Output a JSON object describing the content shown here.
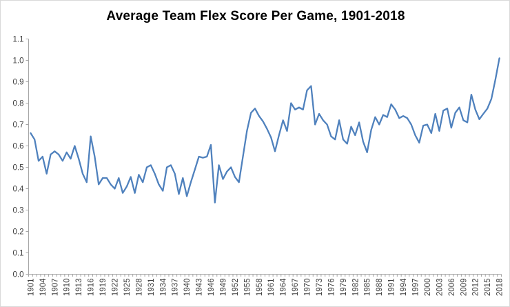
{
  "chart_data": {
    "type": "line",
    "title": "Average Team Flex Score Per Game, 1901-2018",
    "xlabel": "",
    "ylabel": "",
    "ylim": [
      0.0,
      1.1
    ],
    "y_tick_step": 0.1,
    "y_tick_labels": [
      "0.0",
      "0.1",
      "0.2",
      "0.3",
      "0.4",
      "0.5",
      "0.6",
      "0.7",
      "0.8",
      "0.9",
      "1.0",
      "1.1"
    ],
    "x_tick_label_step": 3,
    "x_tick_labels": [
      "1901",
      "1904",
      "1907",
      "1910",
      "1913",
      "1916",
      "1919",
      "1922",
      "1925",
      "1928",
      "1931",
      "1934",
      "1937",
      "1940",
      "1943",
      "1946",
      "1949",
      "1952",
      "1955",
      "1958",
      "1961",
      "1964",
      "1967",
      "1970",
      "1973",
      "1976",
      "1979",
      "1982",
      "1985",
      "1988",
      "1991",
      "1994",
      "1997",
      "2000",
      "2003",
      "2006",
      "2009",
      "2012",
      "2015",
      "2018"
    ],
    "grid": false,
    "legend": false,
    "line_color": "#4F81BD",
    "axis_color": "#A6A6A6",
    "tick_label_color": "#404040",
    "background_color": "#FFFFFF",
    "x": [
      1901,
      1902,
      1903,
      1904,
      1905,
      1906,
      1907,
      1908,
      1909,
      1910,
      1911,
      1912,
      1913,
      1914,
      1915,
      1916,
      1917,
      1918,
      1919,
      1920,
      1921,
      1922,
      1923,
      1924,
      1925,
      1926,
      1927,
      1928,
      1929,
      1930,
      1931,
      1932,
      1933,
      1934,
      1935,
      1936,
      1937,
      1938,
      1939,
      1940,
      1941,
      1942,
      1943,
      1944,
      1945,
      1946,
      1947,
      1948,
      1949,
      1950,
      1951,
      1952,
      1953,
      1954,
      1955,
      1956,
      1957,
      1958,
      1959,
      1960,
      1961,
      1962,
      1963,
      1964,
      1965,
      1966,
      1967,
      1968,
      1969,
      1970,
      1971,
      1972,
      1973,
      1974,
      1975,
      1976,
      1977,
      1978,
      1979,
      1980,
      1981,
      1982,
      1983,
      1984,
      1985,
      1986,
      1987,
      1988,
      1989,
      1990,
      1991,
      1992,
      1993,
      1994,
      1995,
      1996,
      1997,
      1998,
      1999,
      2000,
      2001,
      2002,
      2003,
      2004,
      2005,
      2006,
      2007,
      2008,
      2009,
      2010,
      2011,
      2012,
      2013,
      2014,
      2015,
      2016,
      2017,
      2018
    ],
    "values": [
      0.66,
      0.63,
      0.53,
      0.55,
      0.47,
      0.56,
      0.575,
      0.56,
      0.53,
      0.57,
      0.54,
      0.6,
      0.54,
      0.47,
      0.43,
      0.645,
      0.55,
      0.42,
      0.45,
      0.45,
      0.42,
      0.4,
      0.45,
      0.38,
      0.41,
      0.455,
      0.38,
      0.465,
      0.43,
      0.5,
      0.51,
      0.47,
      0.42,
      0.39,
      0.5,
      0.51,
      0.47,
      0.375,
      0.45,
      0.365,
      0.43,
      0.49,
      0.55,
      0.545,
      0.55,
      0.605,
      0.335,
      0.51,
      0.445,
      0.48,
      0.5,
      0.455,
      0.43,
      0.55,
      0.67,
      0.755,
      0.775,
      0.74,
      0.715,
      0.68,
      0.64,
      0.575,
      0.65,
      0.72,
      0.67,
      0.8,
      0.77,
      0.78,
      0.77,
      0.86,
      0.88,
      0.7,
      0.75,
      0.72,
      0.7,
      0.645,
      0.63,
      0.72,
      0.63,
      0.61,
      0.69,
      0.65,
      0.71,
      0.62,
      0.57,
      0.675,
      0.735,
      0.7,
      0.745,
      0.735,
      0.795,
      0.77,
      0.73,
      0.74,
      0.73,
      0.7,
      0.65,
      0.615,
      0.695,
      0.7,
      0.66,
      0.75,
      0.67,
      0.765,
      0.775,
      0.685,
      0.755,
      0.78,
      0.72,
      0.71,
      0.84,
      0.77,
      0.725,
      0.75,
      0.775,
      0.82,
      0.91,
      1.01
    ]
  }
}
